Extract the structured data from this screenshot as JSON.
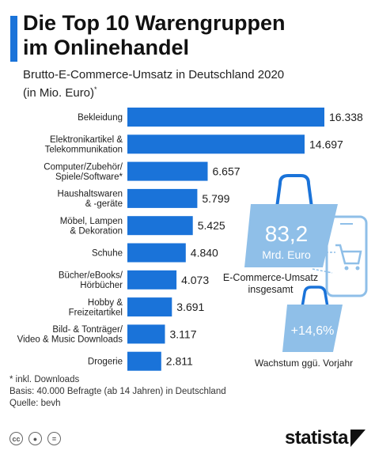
{
  "header": {
    "title_line1": "Die Top 10 Warengruppen",
    "title_line2": "im Onlinehandel",
    "subtitle_line1": "Brutto-E-Commerce-Umsatz in Deutschland 2020",
    "subtitle_line2": "(in Mio. Euro)",
    "subtitle_mark": "*"
  },
  "chart_data": {
    "type": "bar",
    "orientation": "horizontal",
    "categories": [
      [
        "Bekleidung"
      ],
      [
        "Elektronikartikel &",
        "Telekommunikation"
      ],
      [
        "Computer/Zubehör/",
        "Spiele/Software*"
      ],
      [
        "Haushaltswaren",
        "& -geräte"
      ],
      [
        "Möbel, Lampen",
        "& Dekoration"
      ],
      [
        "Schuhe"
      ],
      [
        "Bücher/eBooks/",
        "Hörbücher"
      ],
      [
        "Hobby &",
        "Freizeitartikel"
      ],
      [
        "Bild- & Tonträger/",
        "Video & Music Downloads"
      ],
      [
        "Drogerie"
      ]
    ],
    "values": [
      16338,
      14697,
      6657,
      5799,
      5425,
      4840,
      4073,
      3691,
      3117,
      2811
    ],
    "value_labels": [
      "16.338",
      "14.697",
      "6.657",
      "5.799",
      "5.425",
      "4.840",
      "4.073",
      "3.691",
      "3.117",
      "2.811"
    ],
    "bar_color": "#1a73d9",
    "title": "Die Top 10 Warengruppen im Onlinehandel",
    "xlabel": "",
    "ylabel": ""
  },
  "callouts": {
    "total_value": "83,2",
    "total_unit": "Mrd. Euro",
    "total_label_line1": "E-Commerce-Umsatz",
    "total_label_line2": "insgesamt",
    "growth_value": "+14,6%",
    "growth_label": "Wachstum ggü. Vorjahr",
    "bag_color": "#1a73d9",
    "light_color": "#8fbfe8"
  },
  "footnotes": {
    "note": "* inkl. Downloads",
    "basis": "Basis: 40.000 Befragte (ab 14 Jahren) in Deutschland",
    "source": "Quelle: bevh"
  },
  "footer": {
    "brand": "statista",
    "license_icons": [
      "cc-icon",
      "by-icon",
      "nd-icon"
    ]
  }
}
